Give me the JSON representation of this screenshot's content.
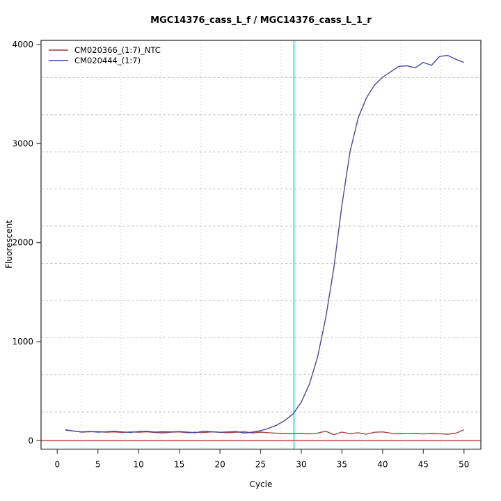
{
  "title": "MGC14376_cass_L_f / MGC14376_cass_L_1_r",
  "chart_data": {
    "type": "line",
    "title": "MGC14376_cass_L_f / MGC14376_cass_L_1_r",
    "xlabel": "Cycle",
    "ylabel": "Fluorescent",
    "xlim": [
      -1.99,
      52.07
    ],
    "ylim": [
      -86,
      4042
    ],
    "x_ticks": [
      0,
      5,
      10,
      15,
      20,
      25,
      30,
      35,
      40,
      45,
      50
    ],
    "y_ticks": [
      0,
      1000,
      2000,
      3000,
      4000
    ],
    "grid": {
      "nx": 11,
      "ny": 11,
      "vertical_style": "dotted",
      "horizontal_style": "dashed",
      "color": "#c4c4c4"
    },
    "legend_position": "top-left",
    "x": [
      1,
      2,
      3,
      4,
      5,
      6,
      7,
      8,
      9,
      10,
      11,
      12,
      13,
      14,
      15,
      16,
      17,
      18,
      19,
      20,
      21,
      22,
      23,
      24,
      25,
      26,
      27,
      28,
      29,
      30,
      31,
      32,
      33,
      34,
      35,
      36,
      37,
      38,
      39,
      40,
      41,
      42,
      43,
      44,
      45,
      46,
      47,
      48,
      49,
      50
    ],
    "series": [
      {
        "name": "CM020366_(1:7)_NTC",
        "color": "#ab4242",
        "values": [
          105,
          98,
          86,
          90,
          92,
          85,
          88,
          82,
          88,
          85,
          90,
          82,
          78,
          86,
          88,
          80,
          85,
          82,
          88,
          85,
          80,
          85,
          90,
          78,
          86,
          80,
          75,
          72,
          70,
          72,
          68,
          76,
          95,
          60,
          86,
          70,
          80,
          65,
          85,
          88,
          75,
          72,
          70,
          72,
          68,
          72,
          70,
          65,
          75,
          110
        ]
      },
      {
        "name": "CM020444_(1:7)",
        "color": "#4646b0",
        "values": [
          110,
          96,
          88,
          93,
          86,
          90,
          95,
          88,
          83,
          92,
          95,
          86,
          90,
          88,
          92,
          86,
          80,
          95,
          90,
          85,
          88,
          92,
          76,
          86,
          100,
          125,
          158,
          205,
          270,
          390,
          570,
          845,
          1240,
          1740,
          2380,
          2920,
          3260,
          3460,
          3590,
          3670,
          3725,
          3780,
          3785,
          3765,
          3820,
          3790,
          3880,
          3890,
          3850,
          3820
        ]
      }
    ],
    "baseline": {
      "value": 0,
      "color": "#cd5c5c"
    },
    "ct_marker": {
      "cycle": 29.1,
      "color": "#00e8e8"
    },
    "axis_color": "#4f4f4f",
    "tick_label_color": "#000000"
  }
}
